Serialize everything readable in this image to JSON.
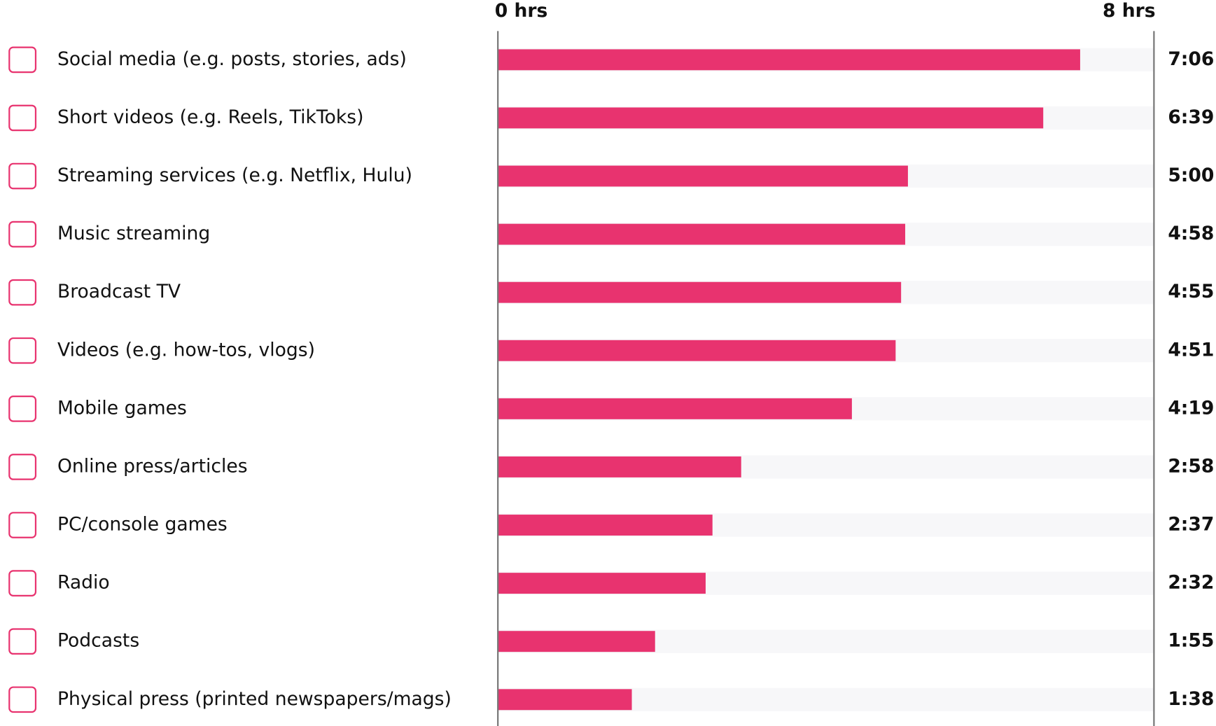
{
  "chart_data": {
    "type": "bar",
    "orientation": "horizontal",
    "categories": [
      "Social media (e.g. posts, stories, ads)",
      "Short videos (e.g. Reels, TikToks)",
      "Streaming services (e.g. Netflix, Hulu)",
      "Music streaming",
      "Broadcast TV",
      "Videos (e.g. how-tos, vlogs)",
      "Mobile games",
      "Online press/articles",
      "PC/console games",
      "Radio",
      "Podcasts",
      "Physical press (printed newspapers/mags)"
    ],
    "values": [
      7.1,
      6.65,
      5,
      4.9667,
      4.9167,
      4.85,
      4.3167,
      2.9667,
      2.6167,
      2.5333,
      1.9167,
      1.6333
    ],
    "value_labels": [
      "7:06",
      "6:39",
      "5:00",
      "4:58",
      "4:55",
      "4:51",
      "4:19",
      "2:58",
      "2:37",
      "2:32",
      "1:55",
      "1:38"
    ],
    "color": "#e8336f",
    "xlim": [
      0,
      8
    ],
    "xticks": [
      {
        "value": 0,
        "label": "0 hrs"
      },
      {
        "value": 8,
        "label": "8 hrs"
      }
    ]
  }
}
